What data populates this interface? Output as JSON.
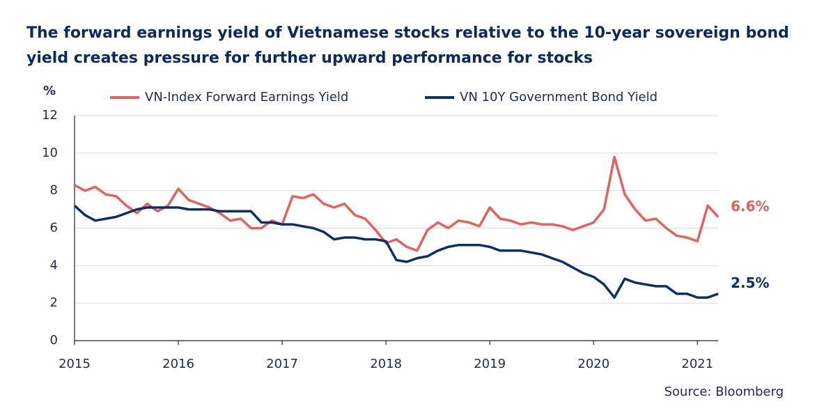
{
  "chart_data": {
    "type": "line",
    "title_lines": [
      "The forward earnings yield of Vietnamese stocks relative to the 10-year sovereign bond",
      "yield creates pressure for further upward performance for stocks"
    ],
    "y_label": "%",
    "source": "Source: Bloomberg",
    "x": [
      2015.0,
      2015.1,
      2015.2,
      2015.3,
      2015.4,
      2015.5,
      2015.6,
      2015.7,
      2015.8,
      2015.9,
      2016.0,
      2016.1,
      2016.2,
      2016.3,
      2016.4,
      2016.5,
      2016.6,
      2016.7,
      2016.8,
      2016.9,
      2017.0,
      2017.1,
      2017.2,
      2017.3,
      2017.4,
      2017.5,
      2017.6,
      2017.7,
      2017.8,
      2017.9,
      2018.0,
      2018.1,
      2018.2,
      2018.3,
      2018.4,
      2018.5,
      2018.6,
      2018.7,
      2018.8,
      2018.9,
      2019.0,
      2019.1,
      2019.2,
      2019.3,
      2019.4,
      2019.5,
      2019.6,
      2019.7,
      2019.8,
      2019.9,
      2020.0,
      2020.1,
      2020.2,
      2020.3,
      2020.4,
      2020.5,
      2020.6,
      2020.7,
      2020.8,
      2020.9,
      2021.0,
      2021.1,
      2021.2
    ],
    "series": [
      {
        "name": "VN-Index Forward Earnings Yield",
        "color": "#e8605a",
        "end_label": "6.6%",
        "values": [
          8.3,
          8.0,
          8.2,
          7.8,
          7.7,
          7.2,
          6.8,
          7.3,
          6.9,
          7.2,
          8.1,
          7.5,
          7.3,
          7.1,
          6.8,
          6.4,
          6.5,
          6.0,
          6.0,
          6.4,
          6.2,
          7.7,
          7.6,
          7.8,
          7.3,
          7.1,
          7.3,
          6.7,
          6.5,
          5.9,
          5.2,
          5.4,
          5.0,
          4.8,
          5.9,
          6.3,
          6.0,
          6.4,
          6.3,
          6.1,
          7.1,
          6.5,
          6.4,
          6.2,
          6.3,
          6.2,
          6.2,
          6.1,
          5.9,
          6.1,
          6.3,
          7.0,
          9.8,
          7.8,
          7.0,
          6.4,
          6.5,
          6.0,
          5.6,
          5.5,
          5.3,
          7.2,
          6.6
        ]
      },
      {
        "name": "VN 10Y Government Bond Yield",
        "color": "#0b2f6b",
        "end_label": "2.5%",
        "values": [
          7.2,
          6.7,
          6.4,
          6.5,
          6.6,
          6.8,
          7.0,
          7.1,
          7.1,
          7.1,
          7.1,
          7.0,
          7.0,
          7.0,
          6.9,
          6.9,
          6.9,
          6.9,
          6.3,
          6.3,
          6.2,
          6.2,
          6.1,
          6.0,
          5.8,
          5.4,
          5.5,
          5.5,
          5.4,
          5.4,
          5.3,
          4.3,
          4.2,
          4.4,
          4.5,
          4.8,
          5.0,
          5.1,
          5.1,
          5.1,
          5.0,
          4.8,
          4.8,
          4.8,
          4.7,
          4.6,
          4.4,
          4.2,
          3.9,
          3.6,
          3.4,
          3.0,
          2.3,
          3.3,
          3.1,
          3.0,
          2.9,
          2.9,
          2.5,
          2.5,
          2.3,
          2.3,
          2.5
        ]
      }
    ],
    "xlim": [
      2015,
      2021.2
    ],
    "xticks": [
      2015,
      2016,
      2017,
      2018,
      2019,
      2020,
      2021
    ],
    "ylim": [
      0,
      12
    ],
    "yticks": [
      0,
      2,
      4,
      6,
      8,
      10,
      12
    ],
    "grid": true
  }
}
